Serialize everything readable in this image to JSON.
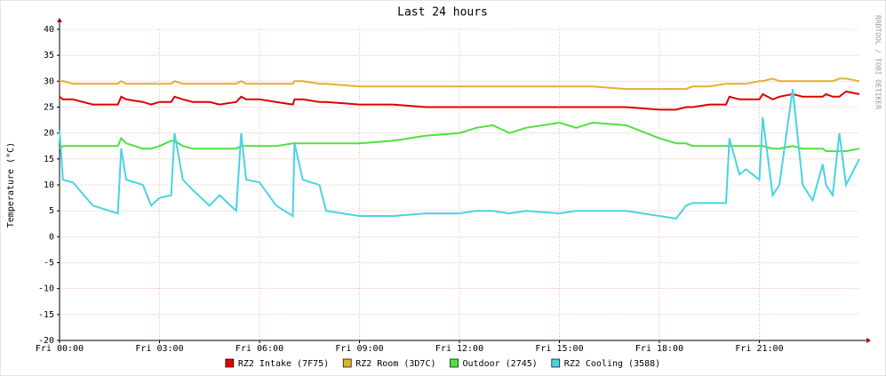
{
  "chart_data": {
    "type": "line",
    "title": "Last 24 hours",
    "y_label": "Temperature (°C)",
    "watermark": "RRDTOOL / TOBI OETIKER",
    "x": [
      0,
      0.1,
      0.4,
      1,
      1.5,
      1.75,
      1.85,
      2,
      2.5,
      2.75,
      3,
      3.35,
      3.45,
      3.7,
      4,
      4.5,
      4.8,
      5.3,
      5.45,
      5.6,
      6,
      6.5,
      7,
      7.05,
      7.3,
      7.8,
      8,
      9,
      10,
      11,
      12,
      12.5,
      13,
      13.5,
      14,
      15,
      15.5,
      16,
      17,
      18,
      18.5,
      18.8,
      19,
      19.5,
      20,
      20.1,
      20.4,
      20.6,
      21,
      21.1,
      21.4,
      21.6,
      22,
      22.3,
      22.6,
      22.9,
      23,
      23.2,
      23.4,
      23.6,
      24
    ],
    "xlim": [
      0,
      24
    ],
    "xticks": [
      {
        "value": 0,
        "label": "Fri 00:00"
      },
      {
        "value": 3,
        "label": "Fri 03:00"
      },
      {
        "value": 6,
        "label": "Fri 06:00"
      },
      {
        "value": 9,
        "label": "Fri 09:00"
      },
      {
        "value": 12,
        "label": "Fri 12:00"
      },
      {
        "value": 15,
        "label": "Fri 15:00"
      },
      {
        "value": 18,
        "label": "Fri 18:00"
      },
      {
        "value": 21,
        "label": "Fri 21:00"
      }
    ],
    "ylim": [
      -20,
      40
    ],
    "yticks": [
      -20,
      -15,
      -10,
      -5,
      0,
      5,
      10,
      15,
      20,
      25,
      30,
      35,
      40
    ],
    "grid": true,
    "series": [
      {
        "name": "RZ2 Intake (7F75)",
        "color": "#e00000",
        "values": [
          27,
          26.5,
          26.5,
          25.5,
          25.5,
          25.5,
          27,
          26.5,
          26,
          25.5,
          26,
          26,
          27,
          26.5,
          26,
          26,
          25.5,
          26,
          27,
          26.5,
          26.5,
          26,
          25.5,
          26.5,
          26.5,
          26,
          26,
          25.5,
          25.5,
          25,
          25,
          25,
          25,
          25,
          25,
          25,
          25,
          25,
          25,
          24.5,
          24.5,
          25,
          25,
          25.5,
          25.5,
          27,
          26.5,
          26.5,
          26.5,
          27.5,
          26.5,
          27,
          27.5,
          27,
          27,
          27,
          27.5,
          27,
          27,
          28,
          27.5
        ]
      },
      {
        "name": "RZ2 Room (3D7C)",
        "color": "#e0b030",
        "values": [
          30,
          30,
          29.5,
          29.5,
          29.5,
          29.5,
          30,
          29.5,
          29.5,
          29.5,
          29.5,
          29.5,
          30,
          29.5,
          29.5,
          29.5,
          29.5,
          29.5,
          30,
          29.5,
          29.5,
          29.5,
          29.5,
          30,
          30,
          29.5,
          29.5,
          29,
          29,
          29,
          29,
          29,
          29,
          29,
          29,
          29,
          29,
          29,
          28.5,
          28.5,
          28.5,
          28.5,
          29,
          29,
          29.5,
          29.5,
          29.5,
          29.5,
          30,
          30,
          30.5,
          30,
          30,
          30,
          30,
          30,
          30,
          30,
          30.5,
          30.5,
          30
        ]
      },
      {
        "name": "Outdoor (2745)",
        "color": "#50e040",
        "values": [
          17,
          17.5,
          17.5,
          17.5,
          17.5,
          17.5,
          19,
          18,
          17,
          17,
          17.5,
          18.5,
          18.5,
          17.5,
          17,
          17,
          17,
          17,
          17.5,
          17.5,
          17.5,
          17.5,
          18,
          18,
          18,
          18,
          18,
          18,
          18.5,
          19.5,
          20,
          21,
          21.5,
          20,
          21,
          22,
          21,
          22,
          21.5,
          19,
          18,
          18,
          17.5,
          17.5,
          17.5,
          17.5,
          17.5,
          17.5,
          17.5,
          17.5,
          17,
          17,
          17.5,
          17,
          17,
          17,
          16.5,
          16.5,
          16.5,
          16.5,
          17
        ]
      },
      {
        "name": "RZ2 Cooling (3588)",
        "color": "#48d4e4",
        "values": [
          20.5,
          11,
          10.5,
          6,
          5,
          4.5,
          17,
          11,
          10,
          6,
          7.5,
          8,
          20,
          11,
          9,
          6,
          8,
          5,
          20,
          11,
          10.5,
          6,
          4,
          18,
          11,
          10,
          5,
          4,
          4,
          4.5,
          4.5,
          5,
          5,
          4.5,
          5,
          4.5,
          5,
          5,
          5,
          4,
          3.5,
          6,
          6.5,
          6.5,
          6.5,
          19,
          12,
          13,
          11,
          23,
          8,
          10,
          28.5,
          10,
          7,
          14,
          10,
          8,
          20,
          10,
          15
        ]
      }
    ]
  }
}
